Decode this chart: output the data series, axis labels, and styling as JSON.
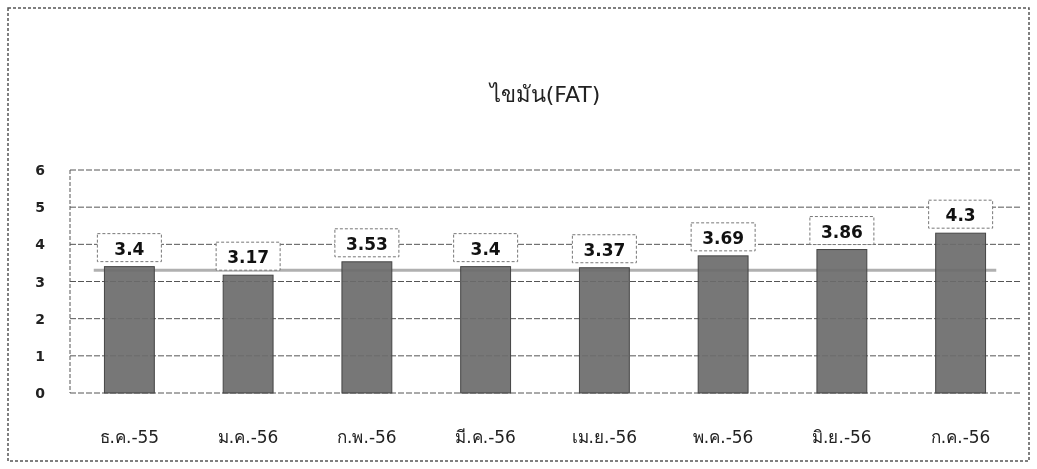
{
  "chart_data": {
    "type": "bar",
    "title": "ไขมัน(FAT)",
    "categories": [
      "ธ.ค.-55",
      "ม.ค.-56",
      "ก.พ.-56",
      "มี.ค.-56",
      "เม.ย.-56",
      "พ.ค.-56",
      "มิ.ย.-56",
      "ก.ค.-56"
    ],
    "values": [
      3.4,
      3.17,
      3.53,
      3.4,
      3.37,
      3.69,
      3.86,
      4.3
    ],
    "color": "#6b6b6b",
    "ylim": [
      0,
      6
    ],
    "yticks": [
      0,
      1,
      2,
      3,
      4,
      5,
      6
    ],
    "grid": "y",
    "data_labels": true,
    "ref_lines": [
      {
        "axis": "y",
        "value": 3.3,
        "color": "#b0b0b0"
      }
    ]
  }
}
